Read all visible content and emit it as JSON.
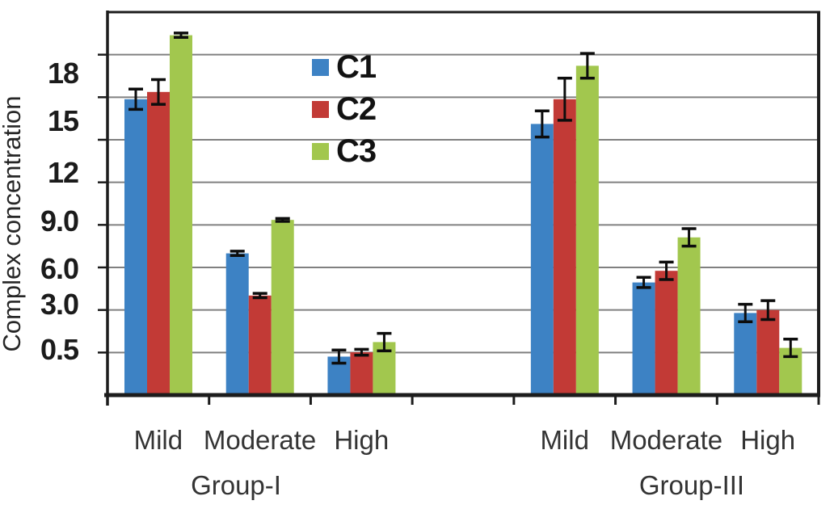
{
  "figure": {
    "background": "#ffffff"
  },
  "chart_data": {
    "type": "bar",
    "title": "",
    "ylabel": "Complex concentration",
    "xlabel": "",
    "y_tick_labels": [
      "18",
      "15",
      "12",
      "9.0",
      "6.0",
      "3.0",
      "0.5"
    ],
    "y_tick_values": [
      18,
      15,
      12,
      9.0,
      6.0,
      3.0,
      0.5
    ],
    "ylim": [
      0,
      24
    ],
    "grid": "horizontal-gray-lines",
    "error_bars": true,
    "legend_position": "upper-center-left-inside-plot",
    "groups": [
      {
        "label": "Group-I",
        "categories": [
          "Mild",
          "Moderate",
          "High"
        ]
      },
      {
        "label": "Group-III",
        "categories": [
          "Mild",
          "Moderate",
          "High"
        ]
      }
    ],
    "series": [
      {
        "name": "C1",
        "color": "#3d82c4",
        "values": [
          [
            17.9,
            7.3,
            0.2
          ],
          [
            16.2,
            5.3,
            3.2
          ]
        ],
        "errors": [
          [
            0.7,
            0.15,
            0.45
          ],
          [
            0.9,
            0.35,
            0.6
          ]
        ]
      },
      {
        "name": "C2",
        "color": "#c23a36",
        "values": [
          [
            18.4,
            4.4,
            0.5
          ],
          [
            17.9,
            6.1,
            3.4
          ]
        ],
        "errors": [
          [
            0.85,
            0.15,
            0.2
          ],
          [
            1.45,
            0.6,
            0.65
          ]
        ]
      },
      {
        "name": "C3",
        "color": "#a2c74e",
        "values": [
          [
            22.3,
            9.6,
            1.2
          ],
          [
            20.2,
            8.4,
            0.8
          ]
        ],
        "errors": [
          [
            0.15,
            0.1,
            0.6
          ],
          [
            0.85,
            0.6,
            0.6
          ]
        ]
      }
    ],
    "colors": {
      "gridline": "#808080",
      "axis": "#1c1c1c",
      "error_bar": "#0d0d0d"
    }
  }
}
